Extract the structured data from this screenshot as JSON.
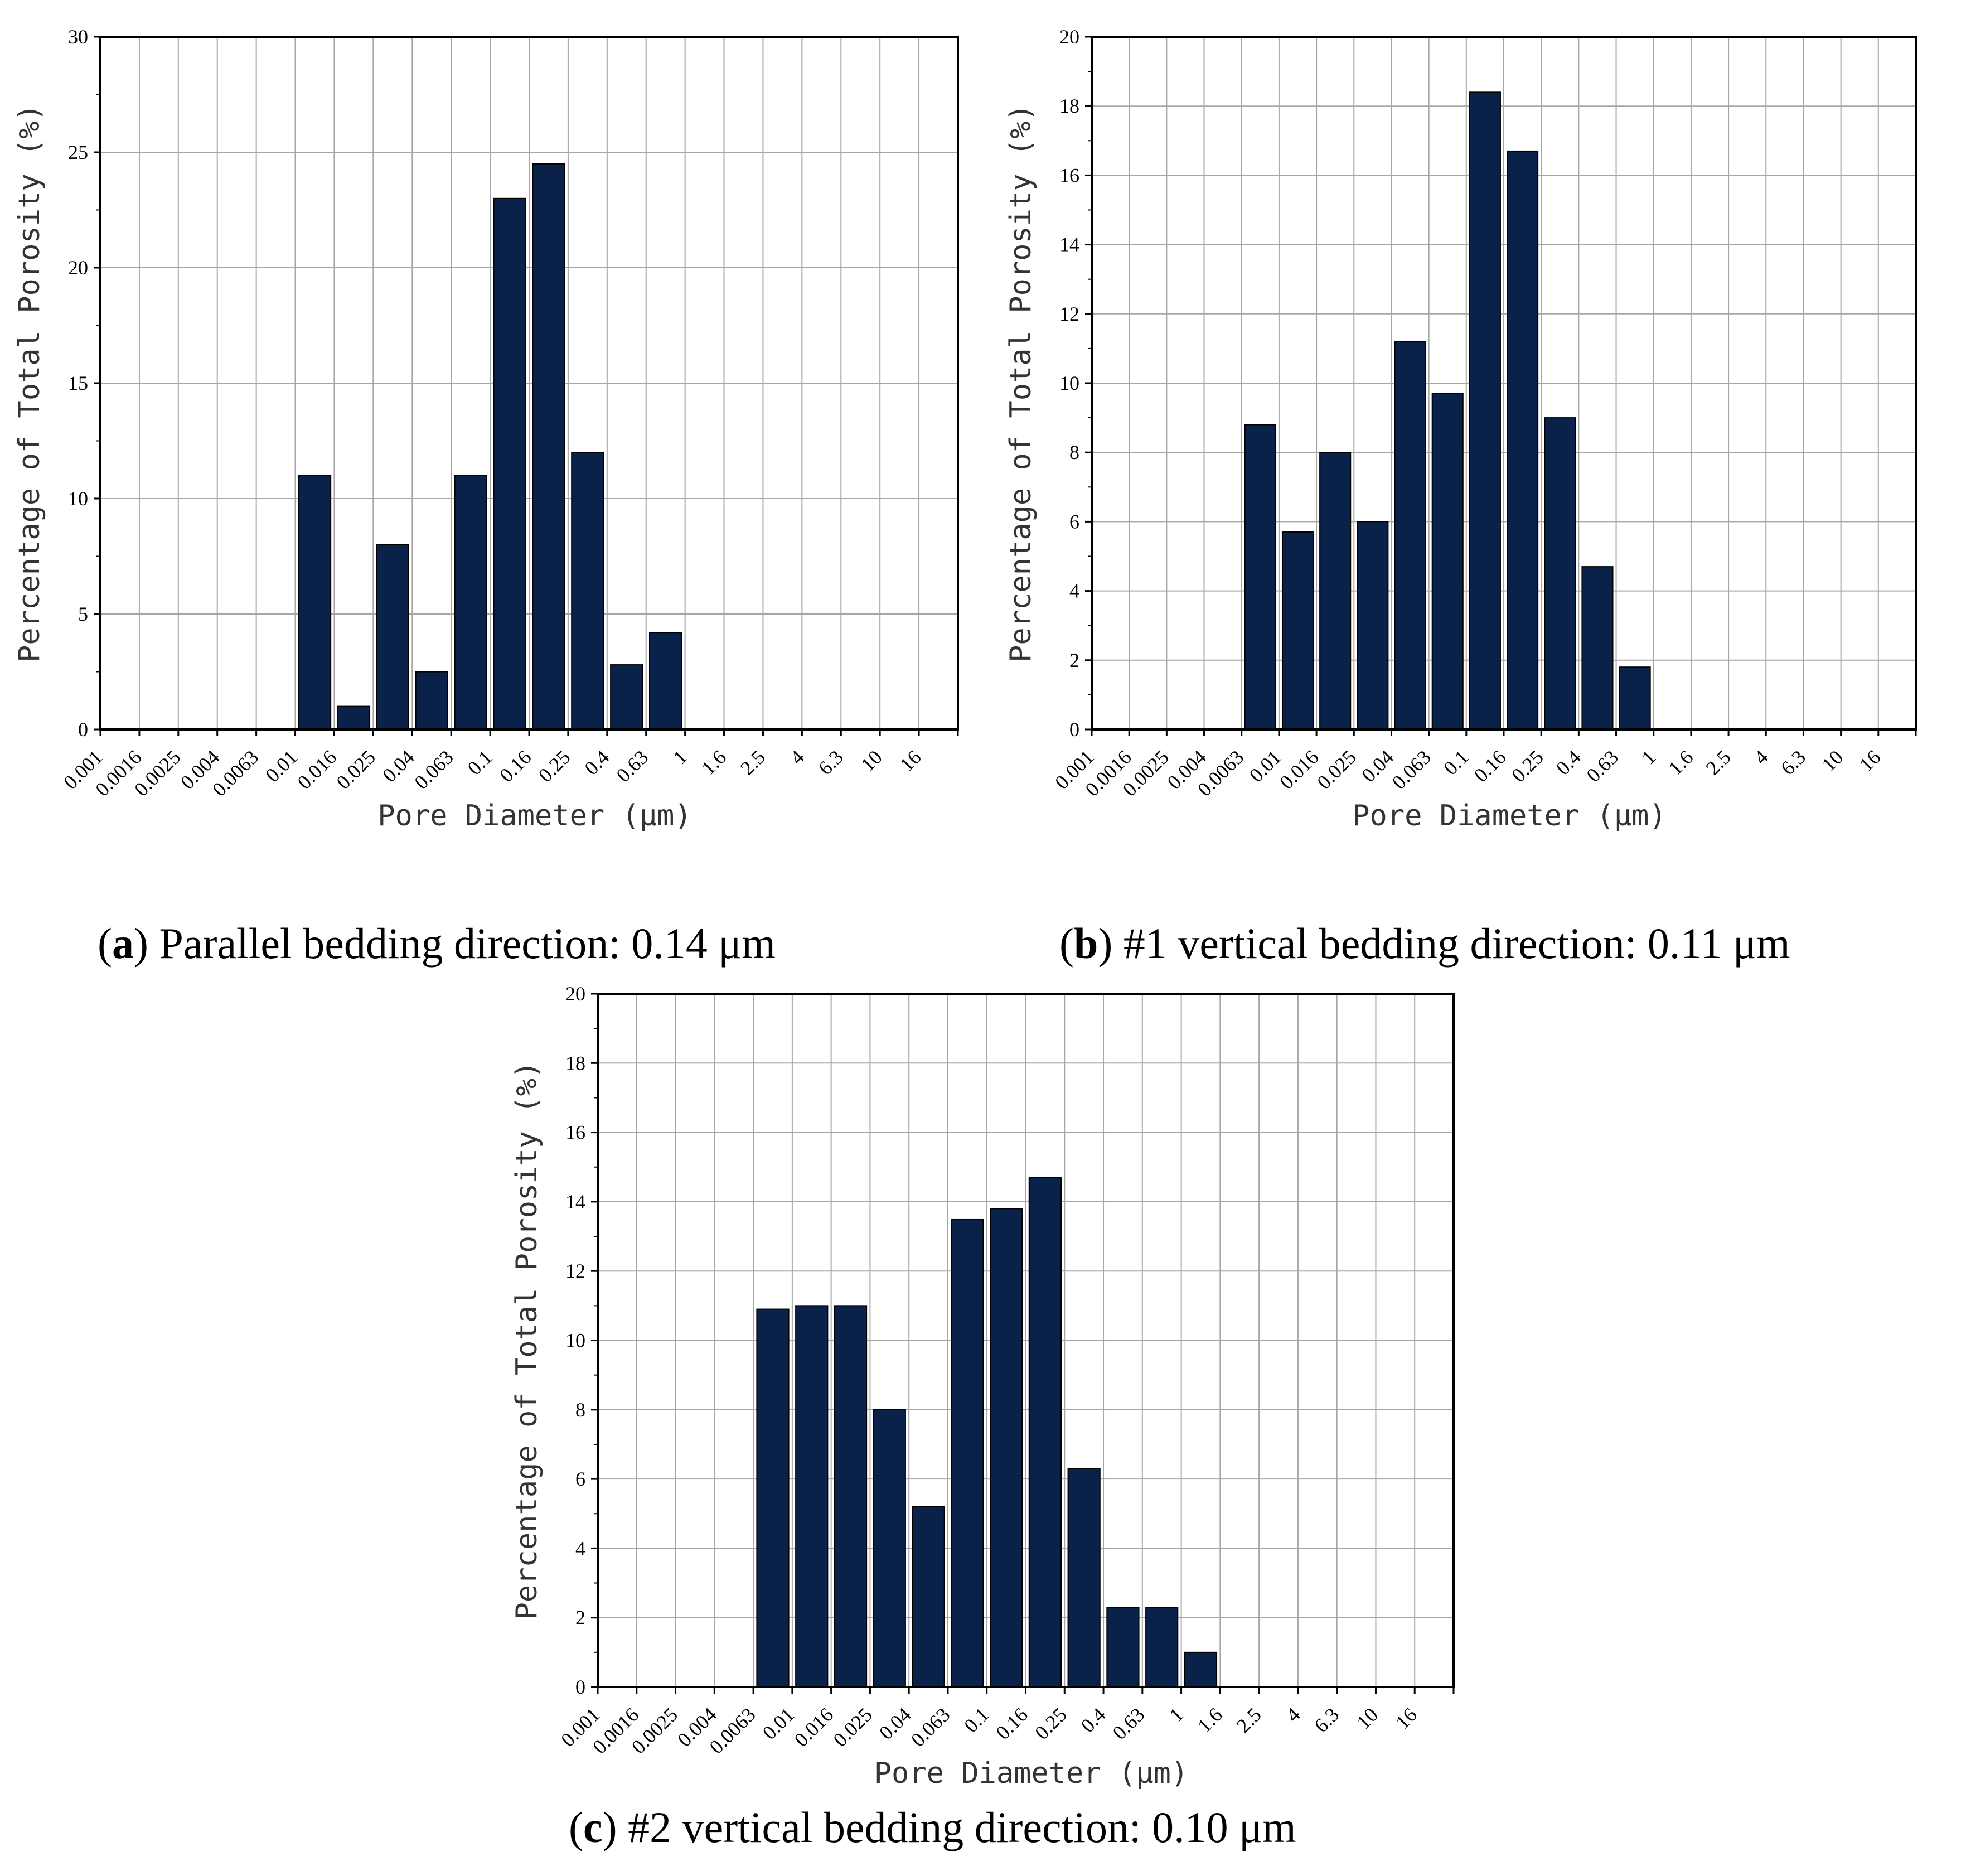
{
  "colors": {
    "bar": "#0a2149",
    "grid": "#a6a6a6",
    "axis": "#000000"
  },
  "chart_data": [
    {
      "id": "a",
      "type": "bar",
      "xlabel": "Pore Diameter (μm)",
      "ylabel": "Percentage of Total Porosity (%)",
      "ylim": [
        0,
        30
      ],
      "yticks": [
        "0",
        "5",
        "10",
        "15",
        "20",
        "25",
        "30"
      ],
      "categories": [
        "0.001",
        "0.0016",
        "0.0025",
        "0.004",
        "0.0063",
        "0.01",
        "0.016",
        "0.025",
        "0.04",
        "0.063",
        "0.1",
        "0.16",
        "0.25",
        "0.4",
        "0.63",
        "1",
        "1.6",
        "2.5",
        "4",
        "6.3",
        "10",
        "16"
      ],
      "values": [
        0,
        0,
        0,
        0,
        0,
        11,
        1,
        8,
        2.5,
        11,
        23,
        24.5,
        12,
        2.8,
        4.2,
        0,
        0,
        0,
        0,
        0,
        0,
        0
      ],
      "caption": {
        "letter": "a",
        "text": "Parallel bedding direction: 0.14 μm"
      }
    },
    {
      "id": "b",
      "type": "bar",
      "xlabel": "Pore Diameter (μm)",
      "ylabel": "Percentage of Total Porosity (%)",
      "ylim": [
        0,
        20
      ],
      "yticks": [
        "0",
        "2",
        "4",
        "6",
        "8",
        "10",
        "12",
        "14",
        "16",
        "18",
        "20"
      ],
      "categories": [
        "0.001",
        "0.0016",
        "0.0025",
        "0.004",
        "0.0063",
        "0.01",
        "0.016",
        "0.025",
        "0.04",
        "0.063",
        "0.1",
        "0.16",
        "0.25",
        "0.4",
        "0.63",
        "1",
        "1.6",
        "2.5",
        "4",
        "6.3",
        "10",
        "16"
      ],
      "values": [
        0,
        0,
        0,
        0,
        8.8,
        5.7,
        8,
        6,
        11.2,
        9.7,
        18.4,
        16.7,
        9,
        4.7,
        1.8,
        0,
        0,
        0,
        0,
        0,
        0,
        0
      ],
      "caption": {
        "letter": "b",
        "text": "#1 vertical bedding direction: 0.11 μm"
      }
    },
    {
      "id": "c",
      "type": "bar",
      "xlabel": "Pore Diameter (μm)",
      "ylabel": "Percentage of Total Porosity (%)",
      "ylim": [
        0,
        20
      ],
      "yticks": [
        "0",
        "2",
        "4",
        "6",
        "8",
        "10",
        "12",
        "14",
        "16",
        "18",
        "20"
      ],
      "categories": [
        "0.001",
        "0.0016",
        "0.0025",
        "0.004",
        "0.0063",
        "0.01",
        "0.016",
        "0.025",
        "0.04",
        "0.063",
        "0.1",
        "0.16",
        "0.25",
        "0.4",
        "0.63",
        "1",
        "1.6",
        "2.5",
        "4",
        "6.3",
        "10",
        "16"
      ],
      "values": [
        0,
        0,
        0,
        0,
        10.9,
        11,
        11,
        8,
        5.2,
        13.5,
        13.8,
        14.7,
        6.3,
        2.3,
        2.3,
        1,
        0,
        0,
        0,
        0,
        0,
        0
      ],
      "caption": {
        "letter": "c",
        "text": "#2 vertical bedding direction: 0.10 μm"
      }
    }
  ]
}
